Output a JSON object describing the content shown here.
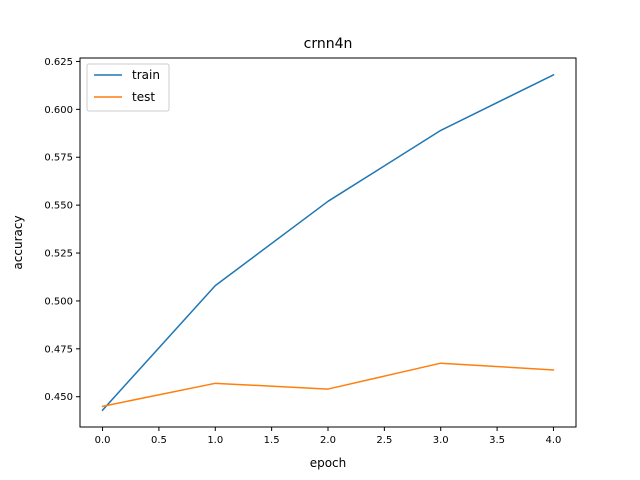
{
  "chart_data": {
    "type": "line",
    "title": "crnn4n",
    "xlabel": "epoch",
    "ylabel": "accuracy",
    "x": [
      0,
      1,
      2,
      3,
      4
    ],
    "series": [
      {
        "name": "train",
        "color": "#1f77b4",
        "values": [
          0.443,
          0.508,
          0.552,
          0.589,
          0.618
        ]
      },
      {
        "name": "test",
        "color": "#ff7f0e",
        "values": [
          0.445,
          0.457,
          0.454,
          0.4675,
          0.464
        ]
      }
    ],
    "xlim": [
      -0.2,
      4.2
    ],
    "ylim": [
      0.4342,
      0.6268
    ],
    "xticks": [
      0.0,
      0.5,
      1.0,
      1.5,
      2.0,
      2.5,
      3.0,
      3.5,
      4.0
    ],
    "xtick_labels": [
      "0.0",
      "0.5",
      "1.0",
      "1.5",
      "2.0",
      "2.5",
      "3.0",
      "3.5",
      "4.0"
    ],
    "yticks": [
      0.45,
      0.475,
      0.5,
      0.525,
      0.55,
      0.575,
      0.6,
      0.625
    ],
    "ytick_labels": [
      "0.450",
      "0.475",
      "0.500",
      "0.525",
      "0.550",
      "0.575",
      "0.600",
      "0.625"
    ],
    "grid": false,
    "legend": "top-left"
  }
}
